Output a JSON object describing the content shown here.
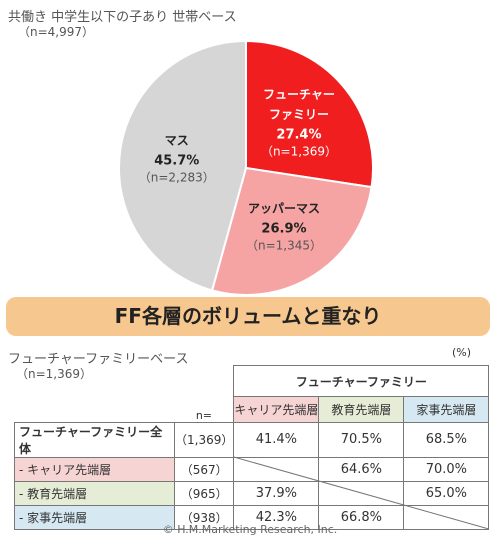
{
  "pie": {
    "title": "共働き 中学生以下の子あり 世帯ベース",
    "subtitle": "（n=4,997）"
  },
  "chart_data": {
    "type": "pie",
    "slices": [
      {
        "name_line1": "フューチャー",
        "name_line2": "ファミリー",
        "percent_label": "27.4%",
        "n_label": "（n=1,369）",
        "value": 27.4,
        "color": "#f01e1e"
      },
      {
        "name_line1": "アッパーマス",
        "name_line2": "",
        "percent_label": "26.9%",
        "n_label": "（n=1,345）",
        "value": 26.9,
        "color": "#f6a3a3"
      },
      {
        "name_line1": "マス",
        "name_line2": "",
        "percent_label": "45.7%",
        "n_label": "（n=2,283）",
        "value": 45.7,
        "color": "#d6d6d6"
      }
    ]
  },
  "banner": "FF各層のボリュームと重なり",
  "table": {
    "title": "フューチャーファミリーベース",
    "subtitle": "（n=1,369）",
    "unit": "(%)",
    "n_header": "n=",
    "group_header": "フューチャーファミリー",
    "columns": [
      "キャリア先端層",
      "教育先端層",
      "家事先端層"
    ],
    "rows": [
      {
        "label": "フューチャーファミリー全体",
        "n": "（1,369）",
        "values": [
          "41.4%",
          "70.5%",
          "68.5%"
        ]
      },
      {
        "label": "- キャリア先端層",
        "n": "（567）",
        "values": [
          "",
          "64.6%",
          "70.0%"
        ]
      },
      {
        "label": "- 教育先端層",
        "n": "（965）",
        "values": [
          "37.9%",
          "",
          "65.0%"
        ]
      },
      {
        "label": "- 家事先端層",
        "n": "（938）",
        "values": [
          "42.3%",
          "66.8%",
          ""
        ]
      }
    ]
  },
  "copyright": "© H.M.Marketing Research, Inc."
}
